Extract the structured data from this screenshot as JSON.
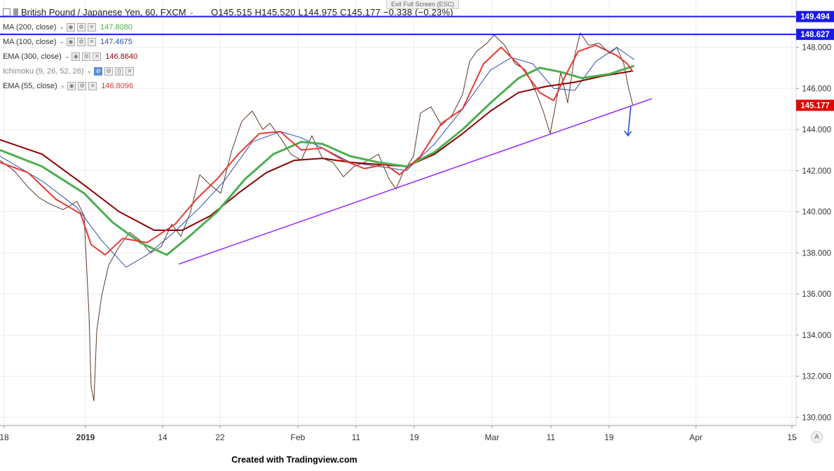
{
  "legend": {
    "symbol": "British Pound / Japanese Yen, 60, FXCM",
    "ohlc": "O145.515  H145.520  L144.975  C145.177  −0.338 (−0.23%)",
    "indicators": [
      {
        "label": "MA (200, close)",
        "value": "147.8080",
        "color": "#4caf50"
      },
      {
        "label": "MA (100, close)",
        "value": "147.4675",
        "color": "#2b4ea8"
      },
      {
        "label": "EMA (300, close)",
        "value": "146.8640",
        "color": "#8b0000"
      },
      {
        "label": "Ichimoku (9, 26, 52, 26)",
        "value": "",
        "color": "#888888"
      },
      {
        "label": "EMA (55, close)",
        "value": "146.8096",
        "color": "#e53935"
      }
    ]
  },
  "ui": {
    "exit_fullscreen": "Exit Full Screen (ESC)",
    "footer": "Created with Tradingview.com",
    "auto": "A"
  },
  "chart_data": {
    "type": "line",
    "title": "British Pound / Japanese Yen, 60, FXCM",
    "ylim": [
      129.6,
      150.3
    ],
    "xlim": [
      0,
      1136
    ],
    "x_ticks": [
      {
        "x": 6,
        "label": "18",
        "bold": false
      },
      {
        "x": 122,
        "label": "2019",
        "bold": true
      },
      {
        "x": 232,
        "label": "14",
        "bold": false
      },
      {
        "x": 314,
        "label": "22",
        "bold": false
      },
      {
        "x": 425,
        "label": "Feb",
        "bold": false
      },
      {
        "x": 508,
        "label": "11",
        "bold": false
      },
      {
        "x": 591,
        "label": "19",
        "bold": false
      },
      {
        "x": 702,
        "label": "Mar",
        "bold": false
      },
      {
        "x": 786,
        "label": "11",
        "bold": false
      },
      {
        "x": 869,
        "label": "19",
        "bold": false
      },
      {
        "x": 993,
        "label": "Apr",
        "bold": false
      },
      {
        "x": 1130,
        "label": "15",
        "bold": false
      }
    ],
    "y_ticks": [
      130.0,
      132.0,
      134.0,
      136.0,
      138.0,
      140.0,
      142.0,
      144.0,
      146.0,
      148.0
    ],
    "price_tags": [
      {
        "value": 149.494,
        "label": "149.494",
        "color": "#1a1ae6"
      },
      {
        "value": 148.627,
        "label": "148.627",
        "color": "#1a1ae6"
      },
      {
        "value": 145.177,
        "label": "145.177",
        "color": "#e00000"
      }
    ],
    "h_lines": [
      {
        "value": 149.494,
        "color": "#1a1ae6"
      },
      {
        "value": 148.627,
        "color": "#1a1ae6"
      }
    ],
    "trendline": {
      "points": [
        [
          255,
          137.45
        ],
        [
          930,
          145.5
        ]
      ],
      "color": "#9b30ff"
    },
    "arrow": {
      "from": [
        900,
        145.1
      ],
      "to": [
        896,
        143.7
      ],
      "color": "#1e4fd8"
    },
    "series": [
      {
        "name": "MA (200, close)",
        "color": "#4caf50",
        "width": 3,
        "points": [
          [
            0,
            143.0
          ],
          [
            60,
            142.2
          ],
          [
            120,
            140.9
          ],
          [
            160,
            139.5
          ],
          [
            200,
            138.5
          ],
          [
            238,
            137.9
          ],
          [
            270,
            138.8
          ],
          [
            310,
            140.0
          ],
          [
            350,
            141.6
          ],
          [
            390,
            142.8
          ],
          [
            430,
            143.4
          ],
          [
            460,
            143.3
          ],
          [
            500,
            142.7
          ],
          [
            540,
            142.4
          ],
          [
            580,
            142.2
          ],
          [
            620,
            142.9
          ],
          [
            660,
            144.0
          ],
          [
            700,
            145.3
          ],
          [
            740,
            146.5
          ],
          [
            770,
            147.0
          ],
          [
            800,
            146.8
          ],
          [
            830,
            146.5
          ],
          [
            870,
            146.7
          ],
          [
            905,
            147.1
          ]
        ]
      },
      {
        "name": "MA (100, close)",
        "color": "#2b4ea8",
        "width": 1,
        "points": [
          [
            0,
            142.7
          ],
          [
            60,
            141.5
          ],
          [
            110,
            140.2
          ],
          [
            145,
            138.6
          ],
          [
            180,
            137.3
          ],
          [
            210,
            137.9
          ],
          [
            245,
            138.9
          ],
          [
            285,
            140.2
          ],
          [
            320,
            141.5
          ],
          [
            360,
            143.4
          ],
          [
            400,
            143.9
          ],
          [
            430,
            143.6
          ],
          [
            460,
            143.1
          ],
          [
            500,
            142.4
          ],
          [
            540,
            142.2
          ],
          [
            580,
            142.0
          ],
          [
            620,
            143.3
          ],
          [
            660,
            145.0
          ],
          [
            700,
            146.9
          ],
          [
            730,
            147.5
          ],
          [
            760,
            147.2
          ],
          [
            790,
            146.0
          ],
          [
            820,
            145.9
          ],
          [
            850,
            147.3
          ],
          [
            880,
            148.0
          ],
          [
            905,
            147.4
          ]
        ]
      },
      {
        "name": "EMA (300, close)",
        "color": "#8b0000",
        "width": 2,
        "points": [
          [
            0,
            143.5
          ],
          [
            60,
            142.8
          ],
          [
            120,
            141.3
          ],
          [
            170,
            140.0
          ],
          [
            220,
            139.1
          ],
          [
            260,
            139.1
          ],
          [
            300,
            139.8
          ],
          [
            340,
            140.9
          ],
          [
            380,
            141.9
          ],
          [
            420,
            142.5
          ],
          [
            460,
            142.6
          ],
          [
            500,
            142.4
          ],
          [
            540,
            142.3
          ],
          [
            580,
            142.2
          ],
          [
            620,
            142.8
          ],
          [
            660,
            143.8
          ],
          [
            700,
            144.9
          ],
          [
            740,
            145.8
          ],
          [
            780,
            146.1
          ],
          [
            820,
            146.3
          ],
          [
            860,
            146.6
          ],
          [
            903,
            146.85
          ]
        ]
      },
      {
        "name": "EMA (55, close)",
        "color": "#e53935",
        "width": 2,
        "points": [
          [
            0,
            142.4
          ],
          [
            40,
            141.9
          ],
          [
            80,
            140.6
          ],
          [
            115,
            139.9
          ],
          [
            130,
            138.4
          ],
          [
            150,
            137.9
          ],
          [
            175,
            138.7
          ],
          [
            210,
            138.5
          ],
          [
            250,
            139.4
          ],
          [
            280,
            140.6
          ],
          [
            310,
            141.6
          ],
          [
            340,
            142.8
          ],
          [
            370,
            143.8
          ],
          [
            400,
            143.9
          ],
          [
            430,
            143.0
          ],
          [
            460,
            143.1
          ],
          [
            490,
            142.5
          ],
          [
            520,
            142.1
          ],
          [
            550,
            142.3
          ],
          [
            570,
            141.8
          ],
          [
            600,
            142.7
          ],
          [
            630,
            144.3
          ],
          [
            660,
            145.0
          ],
          [
            690,
            147.2
          ],
          [
            715,
            148.0
          ],
          [
            745,
            147.0
          ],
          [
            770,
            145.8
          ],
          [
            790,
            145.4
          ],
          [
            805,
            146.5
          ],
          [
            825,
            147.8
          ],
          [
            850,
            148.1
          ],
          [
            880,
            147.6
          ],
          [
            895,
            147.2
          ],
          [
            903,
            146.81
          ]
        ]
      },
      {
        "name": "Price",
        "color": "#5a3a28",
        "width": 1,
        "points": [
          [
            0,
            142.5
          ],
          [
            20,
            142.0
          ],
          [
            40,
            141.2
          ],
          [
            55,
            140.7
          ],
          [
            70,
            140.4
          ],
          [
            90,
            140.1
          ],
          [
            110,
            140.5
          ],
          [
            120,
            139.8
          ],
          [
            127,
            135.0
          ],
          [
            130,
            131.5
          ],
          [
            134,
            130.8
          ],
          [
            138,
            134.2
          ],
          [
            145,
            135.9
          ],
          [
            155,
            137.4
          ],
          [
            170,
            138.3
          ],
          [
            185,
            139.0
          ],
          [
            200,
            138.6
          ],
          [
            215,
            138.0
          ],
          [
            230,
            138.3
          ],
          [
            245,
            139.4
          ],
          [
            258,
            138.8
          ],
          [
            272,
            140.0
          ],
          [
            285,
            141.8
          ],
          [
            300,
            141.3
          ],
          [
            315,
            140.9
          ],
          [
            330,
            142.9
          ],
          [
            345,
            144.4
          ],
          [
            360,
            144.9
          ],
          [
            375,
            144.0
          ],
          [
            385,
            144.3
          ],
          [
            400,
            143.6
          ],
          [
            415,
            142.8
          ],
          [
            430,
            142.5
          ],
          [
            445,
            143.7
          ],
          [
            460,
            142.6
          ],
          [
            475,
            142.4
          ],
          [
            490,
            141.7
          ],
          [
            505,
            142.2
          ],
          [
            520,
            142.4
          ],
          [
            540,
            142.8
          ],
          [
            555,
            141.6
          ],
          [
            565,
            141.1
          ],
          [
            575,
            141.9
          ],
          [
            590,
            142.7
          ],
          [
            600,
            144.8
          ],
          [
            615,
            145.1
          ],
          [
            630,
            144.2
          ],
          [
            645,
            144.7
          ],
          [
            660,
            145.7
          ],
          [
            670,
            147.3
          ],
          [
            680,
            147.8
          ],
          [
            695,
            148.2
          ],
          [
            705,
            148.6
          ],
          [
            720,
            148.1
          ],
          [
            735,
            147.2
          ],
          [
            750,
            146.9
          ],
          [
            765,
            145.8
          ],
          [
            775,
            144.9
          ],
          [
            785,
            143.8
          ],
          [
            795,
            145.6
          ],
          [
            800,
            146.8
          ],
          [
            810,
            145.3
          ],
          [
            820,
            147.6
          ],
          [
            828,
            148.7
          ],
          [
            840,
            148.1
          ],
          [
            855,
            148.2
          ],
          [
            870,
            147.7
          ],
          [
            880,
            148.0
          ],
          [
            890,
            147.2
          ],
          [
            897,
            146.0
          ],
          [
            903,
            145.18
          ]
        ]
      }
    ]
  }
}
